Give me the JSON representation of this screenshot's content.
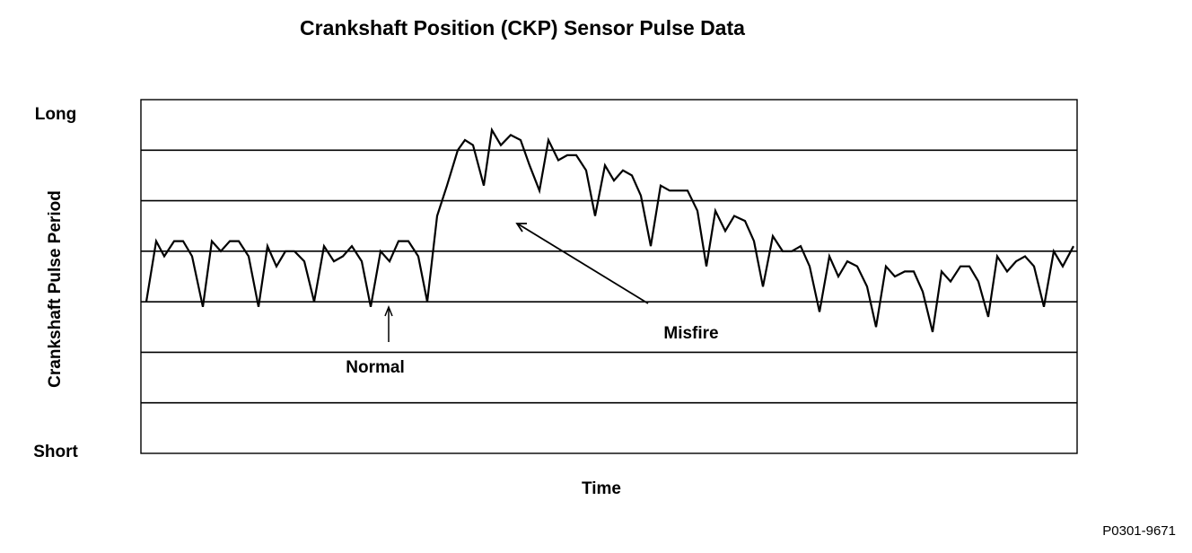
{
  "chart_data": {
    "type": "line",
    "title": "Crankshaft Position (CKP) Sensor Pulse Data",
    "x_label": "Time",
    "y_label": "Crankshaft Pulse Period",
    "xlim": [
      0,
      1043
    ],
    "ylim": [
      0,
      7
    ],
    "yticks": [
      {
        "value": 0,
        "label": "Short"
      },
      {
        "value": 7,
        "label": "Long"
      }
    ],
    "ygrid": [
      1,
      2,
      3,
      4,
      5,
      6
    ],
    "color": "#000000",
    "annotations": [
      {
        "text": "Normal"
      },
      {
        "text": "Misfire"
      }
    ],
    "code": "P0301-9671",
    "x": [
      6,
      17,
      26,
      37,
      47,
      57,
      69,
      79,
      89,
      99,
      109,
      120,
      131,
      141,
      151,
      161,
      171,
      182,
      193,
      204,
      215,
      225,
      235,
      246,
      256,
      267,
      277,
      287,
      298,
      309,
      319,
      330,
      341,
      353,
      361,
      370,
      382,
      391,
      401,
      412,
      423,
      433,
      444,
      454,
      465,
      475,
      485,
      496,
      506,
      517,
      527,
      537,
      547,
      557,
      568,
      579,
      589,
      599,
      609,
      620,
      630,
      640,
      651,
      661,
      673,
      683,
      693,
      704,
      715,
      725,
      735,
      745,
      756,
      767,
      777,
      787,
      798,
      809,
      819,
      830,
      840,
      851,
      861,
      871,
      882,
      892,
      902,
      913,
      923,
      933,
      944,
      954,
      965,
      975,
      985,
      995,
      1006,
      1017,
      1027,
      1039
    ],
    "values": [
      3.0,
      4.2,
      3.9,
      4.2,
      4.2,
      3.9,
      2.9,
      4.2,
      4.0,
      4.2,
      4.2,
      3.9,
      2.9,
      4.1,
      3.7,
      4.0,
      4.0,
      3.8,
      3.0,
      4.1,
      3.8,
      3.9,
      4.1,
      3.8,
      2.9,
      4.0,
      3.8,
      4.2,
      4.2,
      3.9,
      3.0,
      4.7,
      5.3,
      6.0,
      6.2,
      6.1,
      5.3,
      6.4,
      6.1,
      6.3,
      6.2,
      5.7,
      5.2,
      6.2,
      5.8,
      5.9,
      5.9,
      5.6,
      4.7,
      5.7,
      5.4,
      5.6,
      5.5,
      5.1,
      4.1,
      5.3,
      5.2,
      5.2,
      5.2,
      4.8,
      3.7,
      4.8,
      4.4,
      4.7,
      4.6,
      4.2,
      3.3,
      4.3,
      4.0,
      4.0,
      4.1,
      3.7,
      2.8,
      3.9,
      3.5,
      3.8,
      3.7,
      3.3,
      2.5,
      3.7,
      3.5,
      3.6,
      3.6,
      3.2,
      2.4,
      3.6,
      3.4,
      3.7,
      3.7,
      3.4,
      2.7,
      3.9,
      3.6,
      3.8,
      3.9,
      3.7,
      2.9,
      4.0,
      3.7,
      4.1
    ]
  }
}
